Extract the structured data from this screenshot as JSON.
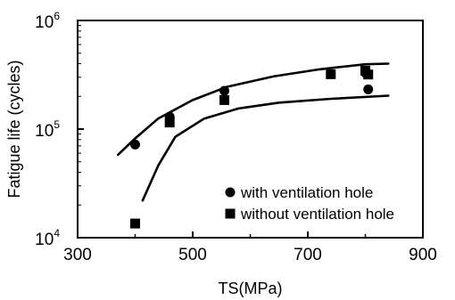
{
  "chart_data": {
    "type": "scatter",
    "xlabel": "TS(MPa)",
    "ylabel": "Fatigue life (cycles)",
    "xlim": [
      300,
      900
    ],
    "ylim": [
      10000,
      1000000
    ],
    "yscale": "log",
    "grid": false,
    "legend_position": "bottom-right",
    "x_ticks": [
      {
        "value": 300,
        "label": "300"
      },
      {
        "value": 500,
        "label": "500"
      },
      {
        "value": 700,
        "label": "700"
      },
      {
        "value": 900,
        "label": "900"
      }
    ],
    "y_ticks": [
      {
        "value": 10000,
        "base": "10",
        "exp": "4"
      },
      {
        "value": 100000,
        "base": "10",
        "exp": "5"
      },
      {
        "value": 1000000,
        "base": "10",
        "exp": "6"
      }
    ],
    "series": [
      {
        "name": "with ventilation hole",
        "marker": "circle",
        "color": "#000000",
        "points": [
          {
            "x": 400,
            "y": 72000
          },
          {
            "x": 460,
            "y": 130000
          },
          {
            "x": 555,
            "y": 225000
          },
          {
            "x": 800,
            "y": 330000
          },
          {
            "x": 805,
            "y": 232000
          }
        ]
      },
      {
        "name": "without ventilation hole",
        "marker": "square",
        "color": "#000000",
        "points": [
          {
            "x": 400,
            "y": 13500
          },
          {
            "x": 460,
            "y": 115000
          },
          {
            "x": 555,
            "y": 185000
          },
          {
            "x": 740,
            "y": 320000
          },
          {
            "x": 800,
            "y": 345000
          },
          {
            "x": 805,
            "y": 318000
          }
        ]
      }
    ],
    "bounds": [
      {
        "role": "upper",
        "points": [
          {
            "x": 370,
            "y": 58000
          },
          {
            "x": 400,
            "y": 82000
          },
          {
            "x": 440,
            "y": 125000
          },
          {
            "x": 500,
            "y": 185000
          },
          {
            "x": 560,
            "y": 245000
          },
          {
            "x": 640,
            "y": 305000
          },
          {
            "x": 720,
            "y": 355000
          },
          {
            "x": 800,
            "y": 395000
          },
          {
            "x": 840,
            "y": 400000
          }
        ]
      },
      {
        "role": "lower",
        "points": [
          {
            "x": 413,
            "y": 22000
          },
          {
            "x": 440,
            "y": 46000
          },
          {
            "x": 470,
            "y": 85000
          },
          {
            "x": 520,
            "y": 125000
          },
          {
            "x": 580,
            "y": 155000
          },
          {
            "x": 650,
            "y": 175000
          },
          {
            "x": 740,
            "y": 190000
          },
          {
            "x": 840,
            "y": 203000
          }
        ]
      }
    ]
  }
}
